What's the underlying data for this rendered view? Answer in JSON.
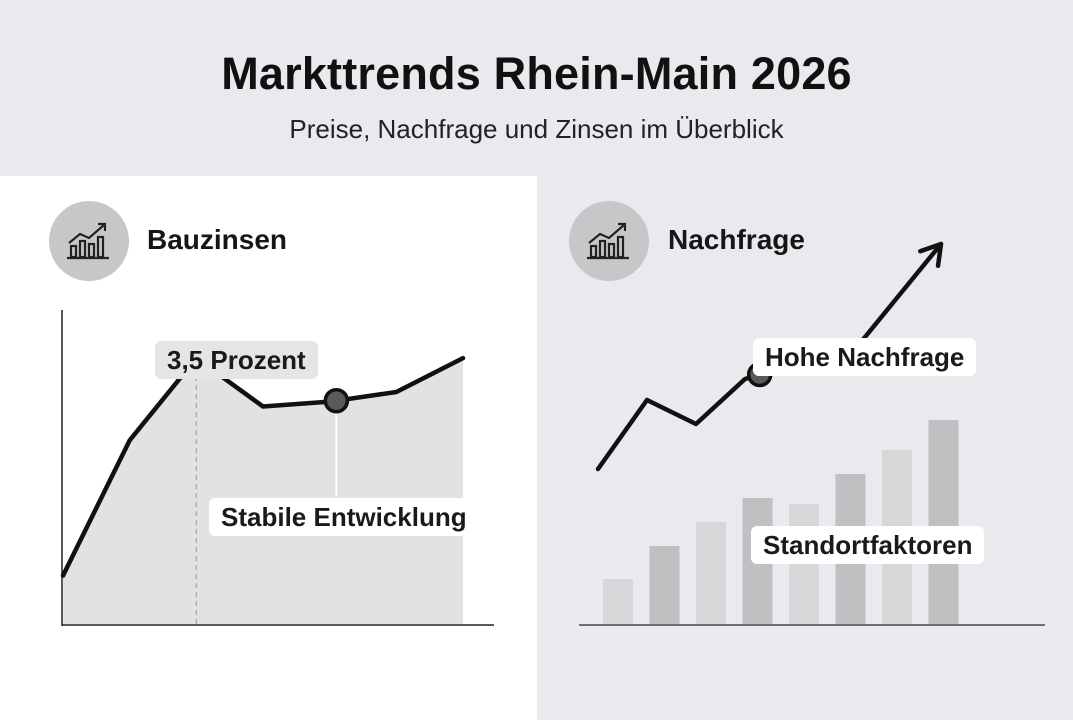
{
  "header": {
    "title": "Markttrends Rhein-Main 2026",
    "subtitle": "Preise, Nachfrage und Zinsen im Überblick"
  },
  "icons": {
    "panel_icon": "chart-growth-icon"
  },
  "colors": {
    "line": "#111111",
    "area": "#e1e2e4",
    "bar_light": "#d6d7d9",
    "bar_dark": "#bfc0c2",
    "marker": "#5a5a5a"
  },
  "chart_data": [
    {
      "type": "area",
      "title": "Bauzinsen",
      "points": [
        {
          "x": 0,
          "y": 10
        },
        {
          "x": 1,
          "y": 38
        },
        {
          "x": 2,
          "y": 55
        },
        {
          "x": 3,
          "y": 45
        },
        {
          "x": 4,
          "y": 46
        },
        {
          "x": 5,
          "y": 48
        },
        {
          "x": 6,
          "y": 55
        }
      ],
      "markers": [
        2,
        4.1
      ],
      "annotations": [
        "3,5 Prozent",
        "Stabile Entwicklung"
      ],
      "grid": false
    },
    {
      "type": "bar",
      "title": "Nachfrage",
      "bars": [
        15,
        26,
        34,
        42,
        40,
        50,
        58,
        68
      ],
      "line": [
        {
          "x": 0,
          "y": 30
        },
        {
          "x": 1,
          "y": 53
        },
        {
          "x": 2,
          "y": 45
        },
        {
          "x": 3,
          "y": 60
        },
        {
          "x": 4,
          "y": 65
        },
        {
          "x": 5,
          "y": 65
        },
        {
          "x": 6,
          "y": 85
        },
        {
          "x": 7,
          "y": 105
        }
      ],
      "markers": [
        3.3
      ],
      "annotations": [
        "Hohe Nachfrage",
        "Standortfaktoren"
      ],
      "grid": false
    }
  ]
}
